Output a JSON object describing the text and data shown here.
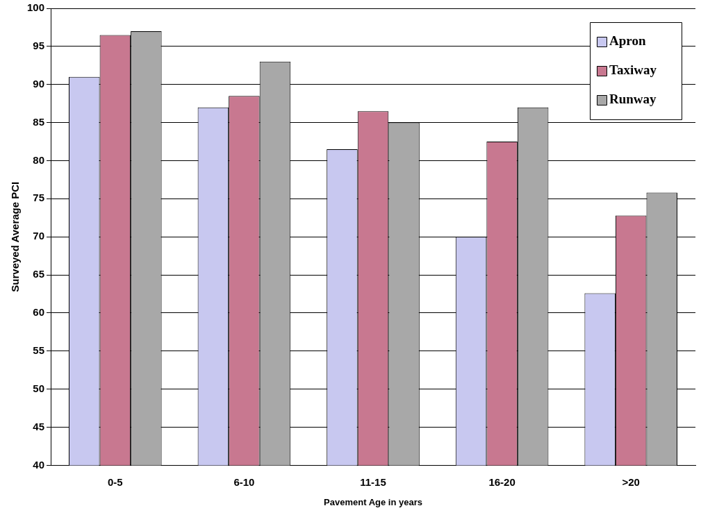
{
  "chart_data": {
    "type": "bar",
    "xlabel": "Pavement Age in years",
    "ylabel": "Surveyed Average PCI",
    "categories": [
      "0-5",
      "6-10",
      "11-15",
      "16-20",
      ">20"
    ],
    "series": [
      {
        "name": "Apron",
        "color": "#c8c8f0",
        "values": [
          91,
          87,
          81.5,
          70,
          62.6
        ]
      },
      {
        "name": "Taxiway",
        "color": "#c87890",
        "values": [
          96.5,
          88.5,
          86.5,
          82.5,
          72.8
        ]
      },
      {
        "name": "Runway",
        "color": "#a8a8a8",
        "values": [
          97,
          93,
          85,
          87,
          75.8
        ]
      }
    ],
    "ylim": [
      40,
      100
    ],
    "yticks": [
      40,
      45,
      50,
      55,
      60,
      65,
      70,
      75,
      80,
      85,
      90,
      95,
      100
    ],
    "grid": "y",
    "legend": "top right"
  }
}
